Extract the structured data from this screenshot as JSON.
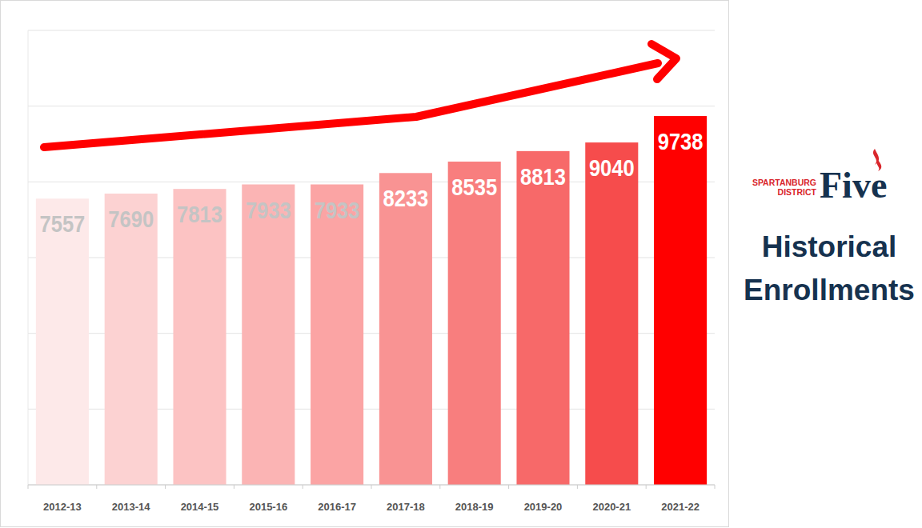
{
  "chart_data": {
    "type": "bar",
    "title": "Historical Enrollments",
    "annotations": [
      "SPARTANBURG",
      "DISTRICT",
      "Five"
    ],
    "categories": [
      "2012-13",
      "2013-14",
      "2014-15",
      "2015-16",
      "2016-17",
      "2017-18",
      "2018-19",
      "2019-20",
      "2020-21",
      "2021-22"
    ],
    "values": [
      7557,
      7690,
      7813,
      7933,
      7933,
      8233,
      8535,
      8813,
      9040,
      9738
    ],
    "colors": [
      "#fde9e9",
      "#fcd2d2",
      "#fcc3c3",
      "#fbb4b4",
      "#fba4a4",
      "#f99393",
      "#f87e7e",
      "#f76969",
      "#f64c4c",
      "#ff0000"
    ],
    "ylim": [
      0,
      12000
    ],
    "yticks": [
      0,
      2000,
      4000,
      6000,
      8000,
      10000,
      12000
    ],
    "grid": true,
    "data_labels": true,
    "tick_labels": "x"
  }
}
